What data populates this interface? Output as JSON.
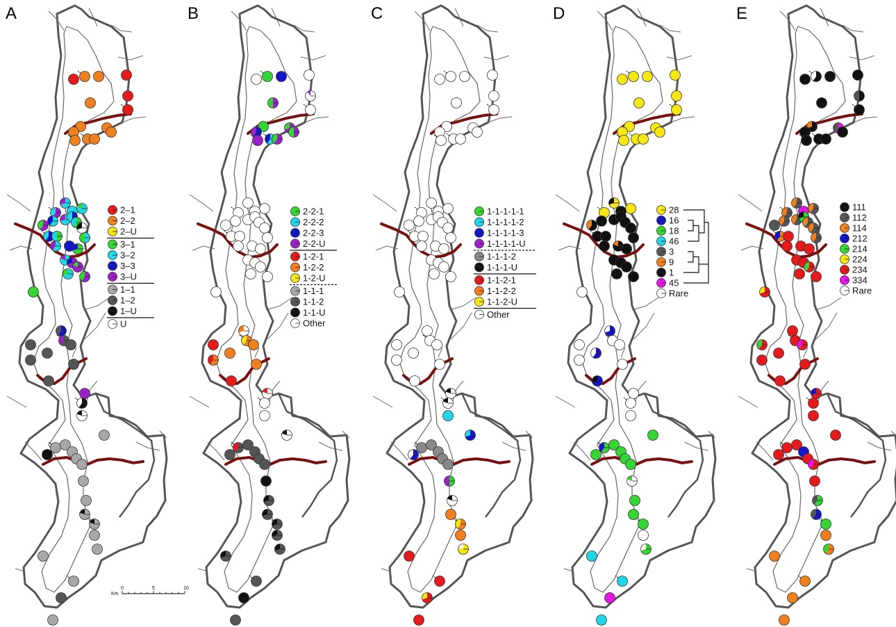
{
  "figure": {
    "colors": {
      "red": "#e41a1c",
      "orange": "#f07f1e",
      "yellow": "#f5e614",
      "green": "#33d633",
      "cyan": "#21d6e6",
      "blue": "#1414c8",
      "purple": "#9a22c8",
      "lightgray": "#a8a8a8",
      "gray": "#888888",
      "darkgray": "#555555",
      "black": "#111111",
      "white": "#ffffff",
      "magenta": "#e614e6",
      "river_red": "#7a0f0f",
      "boundary": "#555555",
      "stream": "#666666"
    },
    "scale_bar": {
      "unit": "Km",
      "ticks": [
        "0",
        "5",
        "10"
      ]
    },
    "panels": [
      {
        "letter": "A",
        "legend": [
          {
            "label": "2–1",
            "color": "red"
          },
          {
            "label": "2–2",
            "color": "orange"
          },
          {
            "label": "2–U",
            "color": "yellow"
          },
          {
            "separator": "solid"
          },
          {
            "label": "3–1",
            "color": "green"
          },
          {
            "label": "3–2",
            "color": "cyan"
          },
          {
            "label": "3–3",
            "color": "blue"
          },
          {
            "label": "3–U",
            "color": "purple"
          },
          {
            "separator": "solid"
          },
          {
            "label": "1–1",
            "color": "lightgray"
          },
          {
            "label": "1–2",
            "color": "darkgray"
          },
          {
            "label": "1–U",
            "color": "black"
          },
          {
            "separator": "solid"
          },
          {
            "label": "U",
            "color": "white"
          }
        ]
      },
      {
        "letter": "B",
        "legend": [
          {
            "label": "2-2-1",
            "color": "green"
          },
          {
            "label": "2-2-2",
            "color": "cyan"
          },
          {
            "label": "2-2-3",
            "color": "blue"
          },
          {
            "label": "2-2-U",
            "color": "purple"
          },
          {
            "separator": "solid"
          },
          {
            "label": "1-2-1",
            "color": "red"
          },
          {
            "label": "1-2-2",
            "color": "orange"
          },
          {
            "label": "1-2-U",
            "color": "yellow"
          },
          {
            "separator": "dashed"
          },
          {
            "label": "1-1-1",
            "color": "lightgray"
          },
          {
            "label": "1-1-2",
            "color": "darkgray"
          },
          {
            "label": "1-1-U",
            "color": "black"
          },
          {
            "label": "Other",
            "color": "white"
          }
        ]
      },
      {
        "letter": "C",
        "legend": [
          {
            "label": "1-1-1-1-1",
            "color": "green"
          },
          {
            "label": "1-1-1-1-2",
            "color": "cyan"
          },
          {
            "label": "1-1-1-1-3",
            "color": "blue"
          },
          {
            "label": "1-1-1-1-U",
            "color": "purple"
          },
          {
            "separator": "dashed"
          },
          {
            "label": "1-1-1-2",
            "color": "gray"
          },
          {
            "label": "1-1-1-U",
            "color": "black"
          },
          {
            "separator": "solid"
          },
          {
            "label": "1-1-2-1",
            "color": "red"
          },
          {
            "label": "1-1-2-2",
            "color": "orange"
          },
          {
            "label": "1-1-2-U",
            "color": "yellow"
          },
          {
            "separator": "solid"
          },
          {
            "label": "Other",
            "color": "white"
          }
        ]
      },
      {
        "letter": "D",
        "legend": [
          {
            "label": "28",
            "color": "yellow"
          },
          {
            "label": "16",
            "color": "blue"
          },
          {
            "label": "18",
            "color": "green"
          },
          {
            "label": "46",
            "color": "cyan"
          },
          {
            "label": "3",
            "color": "darkgray"
          },
          {
            "label": "9",
            "color": "orange"
          },
          {
            "label": "1",
            "color": "black"
          },
          {
            "label": "45",
            "color": "magenta"
          },
          {
            "label": "Rare",
            "color": "white"
          }
        ]
      },
      {
        "letter": "E",
        "legend": [
          {
            "label": "111",
            "color": "black"
          },
          {
            "label": "112",
            "color": "darkgray"
          },
          {
            "label": "114",
            "color": "orange"
          },
          {
            "label": "212",
            "color": "blue"
          },
          {
            "label": "214",
            "color": "green"
          },
          {
            "label": "224",
            "color": "yellow"
          },
          {
            "label": "234",
            "color": "red"
          },
          {
            "label": "334",
            "color": "magenta"
          },
          {
            "label": "Rare",
            "color": "white"
          }
        ]
      }
    ]
  }
}
